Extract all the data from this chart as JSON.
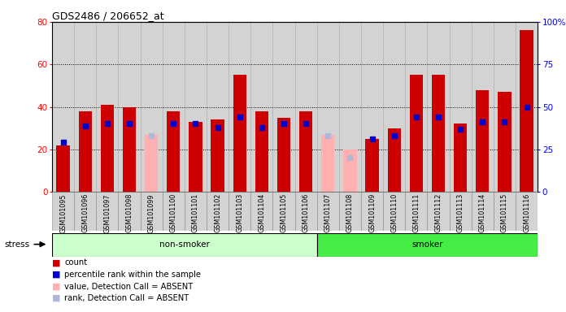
{
  "title": "GDS2486 / 206652_at",
  "samples": [
    "GSM101095",
    "GSM101096",
    "GSM101097",
    "GSM101098",
    "GSM101099",
    "GSM101100",
    "GSM101101",
    "GSM101102",
    "GSM101103",
    "GSM101104",
    "GSM101105",
    "GSM101106",
    "GSM101107",
    "GSM101108",
    "GSM101109",
    "GSM101110",
    "GSM101111",
    "GSM101112",
    "GSM101113",
    "GSM101114",
    "GSM101115",
    "GSM101116"
  ],
  "red_values": [
    22,
    38,
    41,
    40,
    0,
    38,
    33,
    34,
    55,
    38,
    35,
    38,
    0,
    0,
    25,
    30,
    55,
    55,
    32,
    48,
    47,
    76
  ],
  "blue_values": [
    29,
    39,
    40,
    40,
    40,
    40,
    40,
    38,
    44,
    38,
    40,
    40,
    33,
    20,
    31,
    33,
    44,
    44,
    37,
    41,
    41,
    50
  ],
  "pink_values": [
    0,
    0,
    0,
    0,
    27,
    0,
    0,
    0,
    0,
    0,
    0,
    0,
    27,
    20,
    0,
    0,
    0,
    0,
    0,
    0,
    0,
    0
  ],
  "lavender_values": [
    0,
    0,
    0,
    0,
    33,
    0,
    0,
    0,
    0,
    0,
    0,
    0,
    33,
    20,
    0,
    0,
    0,
    0,
    0,
    0,
    0,
    0
  ],
  "absent_mask": [
    false,
    false,
    false,
    false,
    true,
    false,
    false,
    false,
    false,
    false,
    false,
    false,
    true,
    true,
    false,
    false,
    false,
    false,
    false,
    false,
    false,
    false
  ],
  "non_smoker_count": 12,
  "smoker_count": 10,
  "ylim_left": [
    0,
    80
  ],
  "ylim_right": [
    0,
    100
  ],
  "yticks_left": [
    0,
    20,
    40,
    60,
    80
  ],
  "yticks_right": [
    0,
    25,
    50,
    75,
    100
  ],
  "ytick_labels_right": [
    "0",
    "25",
    "50",
    "75",
    "100%"
  ],
  "background_color": "#ffffff",
  "bar_bg": "#d3d3d3",
  "non_smoker_color": "#ccffcc",
  "smoker_color": "#44ee44",
  "red_color": "#cc0000",
  "blue_color": "#0000cc",
  "pink_color": "#ffb0b0",
  "lavender_color": "#b0b8d8",
  "stress_label": "stress",
  "legend_items": [
    "count",
    "percentile rank within the sample",
    "value, Detection Call = ABSENT",
    "rank, Detection Call = ABSENT"
  ]
}
